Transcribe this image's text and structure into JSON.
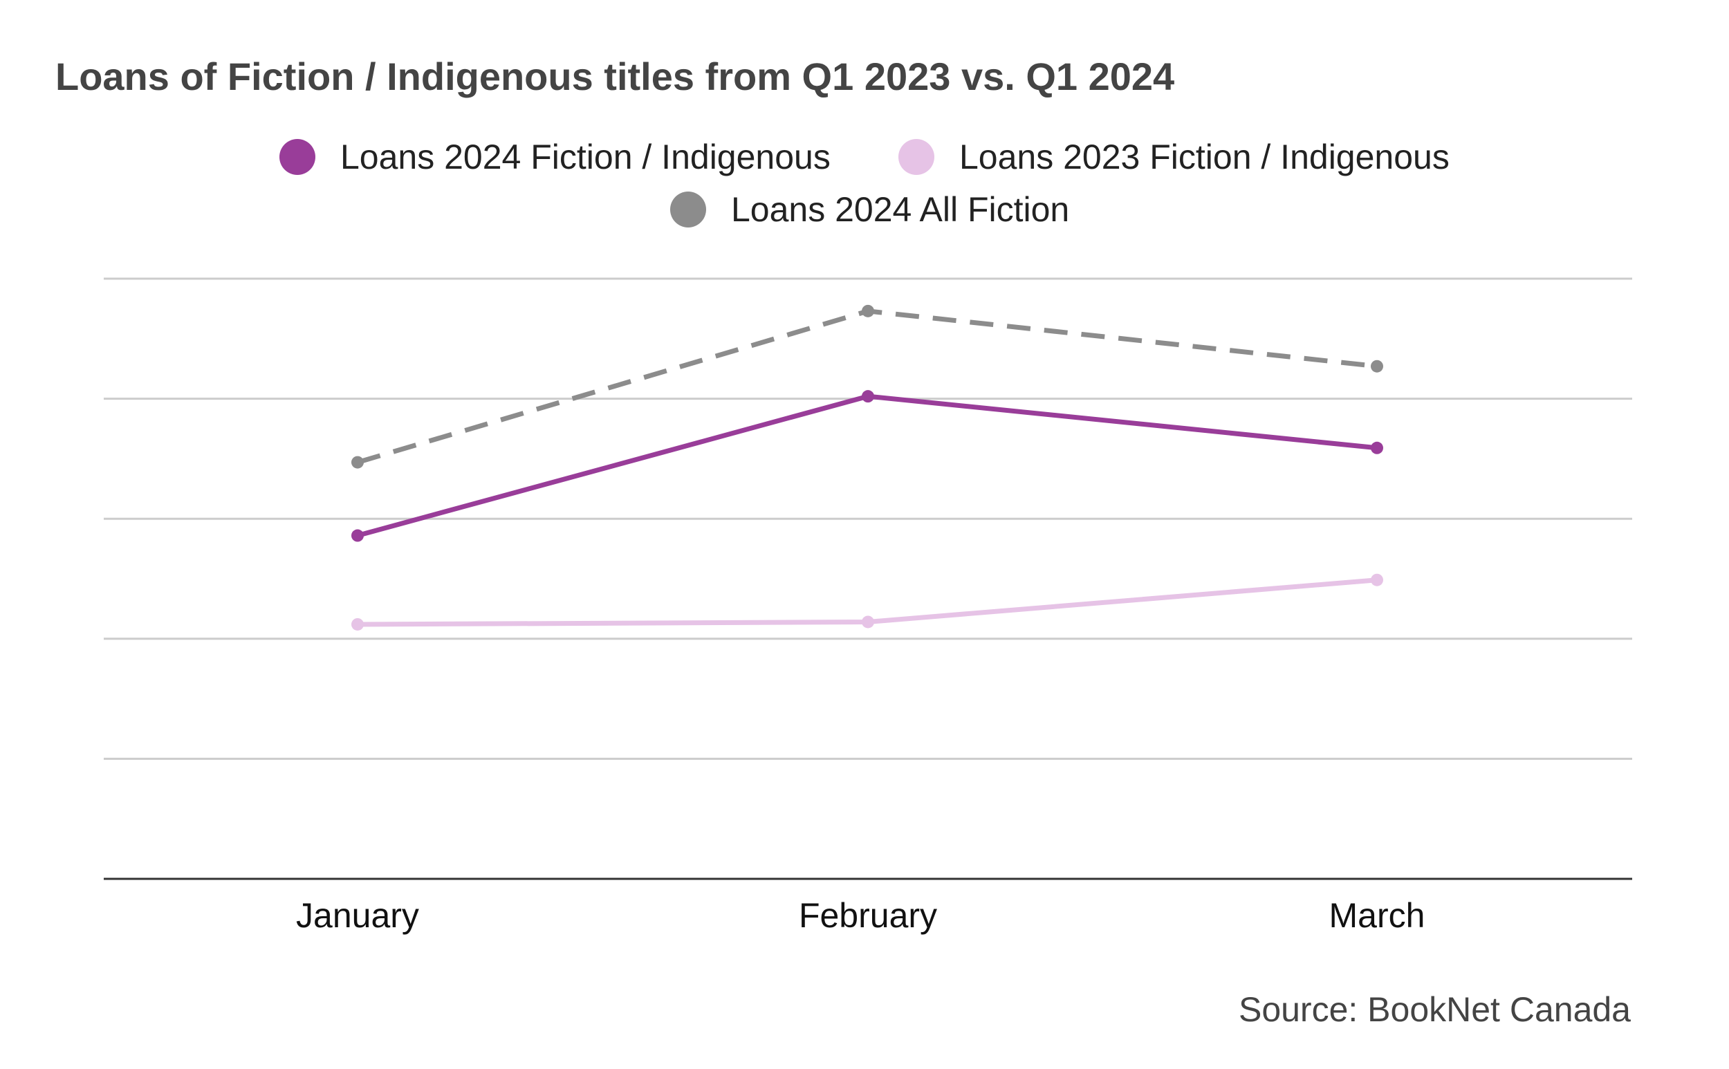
{
  "chart_data": {
    "type": "line",
    "title": "Loans of Fiction / Indigenous titles from Q1 2023 vs. Q1 2024",
    "xlabel": "",
    "ylabel": "",
    "categories": [
      "January",
      "February",
      "March"
    ],
    "ylim": [
      0,
      5
    ],
    "yticks": [
      0,
      1,
      2,
      3,
      4,
      5
    ],
    "y_tick_labels_shown": false,
    "grid": "horizontal",
    "legend_position": "top-center",
    "series": [
      {
        "name": "Loans 2024 Fiction / Indigenous",
        "color": "#993d99",
        "style": "solid",
        "values": [
          2.86,
          4.02,
          3.59
        ]
      },
      {
        "name": "Loans 2023 Fiction / Indigenous",
        "color": "#e6c3e6",
        "style": "solid",
        "values": [
          2.12,
          2.14,
          2.49
        ]
      },
      {
        "name": "Loans 2024 All Fiction",
        "color": "#8c8c8c",
        "style": "dashed",
        "values": [
          3.47,
          4.73,
          4.27
        ]
      }
    ],
    "source": "Source: BookNet Canada"
  }
}
